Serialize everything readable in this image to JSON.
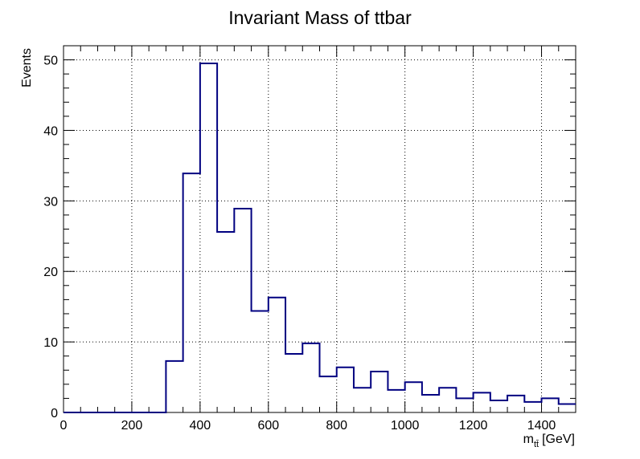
{
  "chart_data": {
    "type": "bar",
    "histogram": true,
    "title": "Invariant Mass of ttbar",
    "xlabel_main": "m",
    "xlabel_sub": "tt̄",
    "xlabel_unit": "[GeV]",
    "ylabel": "Events",
    "xlim": [
      0,
      1500
    ],
    "ylim": [
      0,
      52
    ],
    "grid": true,
    "line_color": "#000080",
    "bin_width": 50,
    "bin_edges_start": [
      0,
      50,
      100,
      150,
      200,
      250,
      300,
      350,
      400,
      450,
      500,
      550,
      600,
      650,
      700,
      750,
      800,
      850,
      900,
      950,
      1000,
      1050,
      1100,
      1150,
      1200,
      1250,
      1300,
      1350,
      1400,
      1450
    ],
    "values": [
      0,
      0,
      0,
      0,
      0,
      0,
      7.3,
      33.9,
      49.5,
      25.6,
      28.9,
      14.4,
      16.3,
      8.3,
      9.8,
      5.1,
      6.4,
      3.5,
      5.8,
      3.2,
      4.3,
      2.5,
      3.5,
      2.0,
      2.8,
      1.7,
      2.4,
      1.5,
      2.0,
      1.2
    ],
    "x_ticks": [
      "0",
      "200",
      "400",
      "600",
      "800",
      "1000",
      "1200",
      "1400"
    ],
    "x_tick_values": [
      0,
      200,
      400,
      600,
      800,
      1000,
      1200,
      1400
    ],
    "y_ticks": [
      "0",
      "10",
      "20",
      "30",
      "40",
      "50"
    ],
    "y_tick_values": [
      0,
      10,
      20,
      30,
      40,
      50
    ]
  }
}
